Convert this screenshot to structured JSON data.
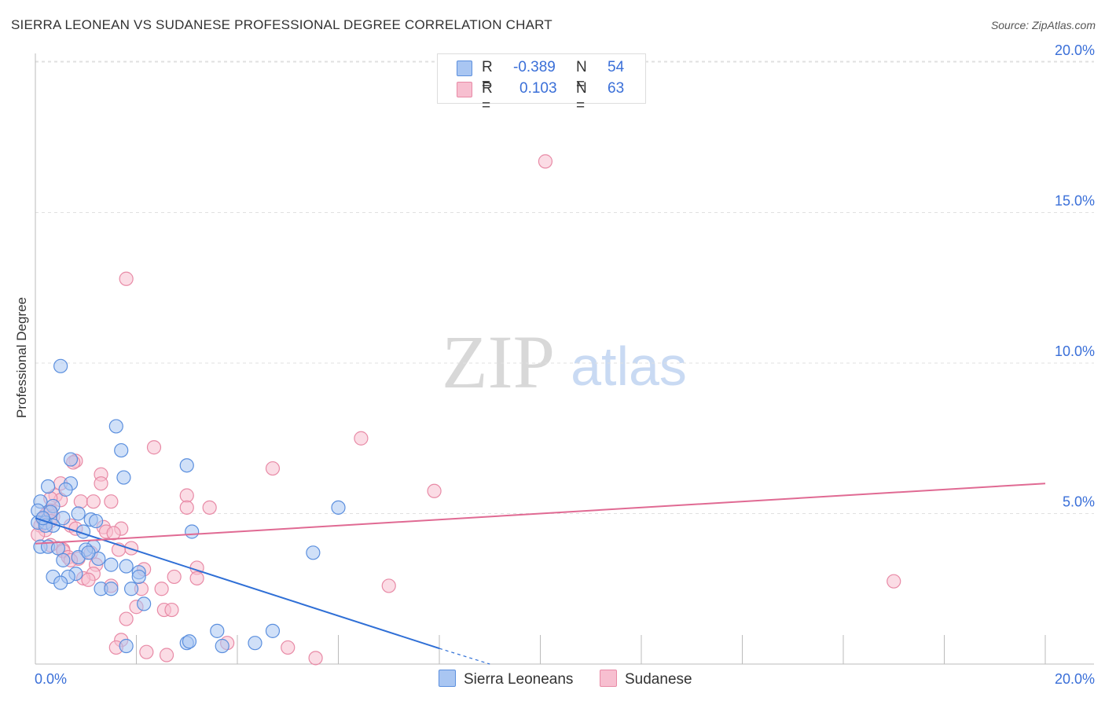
{
  "title": "SIERRA LEONEAN VS SUDANESE PROFESSIONAL DEGREE CORRELATION CHART",
  "source": "Source: ZipAtlas.com",
  "watermark": {
    "zip": "ZIP",
    "atlas": "atlas"
  },
  "colors": {
    "blue_fill": "#a9c6f2",
    "blue_stroke": "#5b8fde",
    "blue_line": "#2f6fd6",
    "pink_fill": "#f7bfd0",
    "pink_stroke": "#e88aa6",
    "pink_line": "#e06a93",
    "tick_text": "#3a6fd8",
    "grid": "#e0e0e0"
  },
  "stats": {
    "blue": {
      "r_label": "R =",
      "r_value": "-0.389",
      "n_label": "N =",
      "n_value": "54"
    },
    "pink": {
      "r_label": "R =",
      "r_value": "0.103",
      "n_label": "N =",
      "n_value": "63"
    }
  },
  "chart_data": {
    "type": "scatter",
    "title": "SIERRA LEONEAN VS SUDANESE PROFESSIONAL DEGREE CORRELATION CHART",
    "xlabel": "",
    "ylabel": "Professional Degree",
    "xlim": [
      0,
      20
    ],
    "ylim": [
      0,
      20
    ],
    "x_tick_labels": [
      "0.0%",
      "20.0%"
    ],
    "y_ticks": [
      5,
      10,
      15,
      20
    ],
    "y_tick_labels": [
      "5.0%",
      "10.0%",
      "15.0%",
      "20.0%"
    ],
    "legend": [
      "Sierra Leoneans",
      "Sudanese"
    ],
    "series": [
      {
        "name": "Sierra Leoneans",
        "color": "blue",
        "trend": {
          "x": [
            0,
            8.0
          ],
          "y": [
            4.85,
            0.52
          ],
          "dashed_to": [
            9.0,
            0.0
          ]
        },
        "points": [
          [
            0.5,
            9.9
          ],
          [
            1.6,
            7.9
          ],
          [
            1.7,
            7.1
          ],
          [
            1.75,
            6.2
          ],
          [
            0.7,
            6.8
          ],
          [
            0.7,
            6.0
          ],
          [
            0.25,
            5.9
          ],
          [
            0.6,
            5.8
          ],
          [
            0.1,
            5.4
          ],
          [
            0.35,
            5.25
          ],
          [
            0.05,
            5.1
          ],
          [
            0.3,
            5.05
          ],
          [
            0.85,
            5.0
          ],
          [
            0.55,
            4.85
          ],
          [
            0.05,
            4.7
          ],
          [
            0.2,
            4.7
          ],
          [
            0.35,
            4.6
          ],
          [
            1.1,
            4.8
          ],
          [
            1.2,
            4.75
          ],
          [
            0.95,
            4.4
          ],
          [
            0.1,
            3.9
          ],
          [
            0.25,
            3.9
          ],
          [
            0.45,
            3.85
          ],
          [
            1.15,
            3.9
          ],
          [
            1.0,
            3.8
          ],
          [
            0.55,
            3.45
          ],
          [
            0.85,
            3.55
          ],
          [
            1.25,
            3.5
          ],
          [
            1.05,
            3.7
          ],
          [
            1.8,
            3.25
          ],
          [
            2.05,
            3.05
          ],
          [
            0.8,
            3.0
          ],
          [
            0.65,
            2.9
          ],
          [
            0.35,
            2.9
          ],
          [
            0.5,
            2.7
          ],
          [
            1.5,
            3.3
          ],
          [
            2.05,
            2.9
          ],
          [
            1.3,
            2.5
          ],
          [
            1.5,
            2.5
          ],
          [
            1.9,
            2.5
          ],
          [
            2.15,
            2.0
          ],
          [
            3.0,
            6.6
          ],
          [
            3.1,
            4.4
          ],
          [
            6.0,
            5.2
          ],
          [
            5.5,
            3.7
          ],
          [
            3.6,
            1.1
          ],
          [
            4.7,
            1.1
          ],
          [
            3.0,
            0.7
          ],
          [
            3.05,
            0.75
          ],
          [
            3.7,
            0.6
          ],
          [
            4.35,
            0.7
          ],
          [
            1.8,
            0.6
          ],
          [
            0.2,
            4.6
          ],
          [
            0.15,
            4.85
          ]
        ]
      },
      {
        "name": "Sudanese",
        "color": "pink",
        "trend": {
          "x": [
            0,
            20
          ],
          "y": [
            4.0,
            6.0
          ]
        },
        "points": [
          [
            10.1,
            16.7
          ],
          [
            1.8,
            12.8
          ],
          [
            6.45,
            7.5
          ],
          [
            2.35,
            7.2
          ],
          [
            4.7,
            6.5
          ],
          [
            0.8,
            6.75
          ],
          [
            0.75,
            6.7
          ],
          [
            1.3,
            6.3
          ],
          [
            1.3,
            6.0
          ],
          [
            0.5,
            6.0
          ],
          [
            7.9,
            5.75
          ],
          [
            3.0,
            5.6
          ],
          [
            0.4,
            5.6
          ],
          [
            0.5,
            5.45
          ],
          [
            0.3,
            5.5
          ],
          [
            0.9,
            5.4
          ],
          [
            1.15,
            5.4
          ],
          [
            1.5,
            5.4
          ],
          [
            3.45,
            5.2
          ],
          [
            3.0,
            5.2
          ],
          [
            0.3,
            5.1
          ],
          [
            0.25,
            5.05
          ],
          [
            0.2,
            4.95
          ],
          [
            0.35,
            4.9
          ],
          [
            0.15,
            4.8
          ],
          [
            0.3,
            4.75
          ],
          [
            0.1,
            4.6
          ],
          [
            0.7,
            4.6
          ],
          [
            0.8,
            4.5
          ],
          [
            1.7,
            4.5
          ],
          [
            1.35,
            4.55
          ],
          [
            0.2,
            4.45
          ],
          [
            1.4,
            4.4
          ],
          [
            1.55,
            4.35
          ],
          [
            0.05,
            4.3
          ],
          [
            0.3,
            3.95
          ],
          [
            0.55,
            3.8
          ],
          [
            1.9,
            3.85
          ],
          [
            0.55,
            3.75
          ],
          [
            1.65,
            3.8
          ],
          [
            1.1,
            3.7
          ],
          [
            0.65,
            3.55
          ],
          [
            0.85,
            3.5
          ],
          [
            0.7,
            3.45
          ],
          [
            1.2,
            3.3
          ],
          [
            3.2,
            3.2
          ],
          [
            2.15,
            3.15
          ],
          [
            1.15,
            3.0
          ],
          [
            0.95,
            2.85
          ],
          [
            1.05,
            2.8
          ],
          [
            2.75,
            2.9
          ],
          [
            3.2,
            2.85
          ],
          [
            1.5,
            2.6
          ],
          [
            2.1,
            2.5
          ],
          [
            2.5,
            2.5
          ],
          [
            7.0,
            2.6
          ],
          [
            17.0,
            2.75
          ],
          [
            2.0,
            1.9
          ],
          [
            2.55,
            1.8
          ],
          [
            2.7,
            1.8
          ],
          [
            1.8,
            1.5
          ],
          [
            1.7,
            0.8
          ],
          [
            5.0,
            0.55
          ]
        ]
      }
    ]
  },
  "extra_pink_low": [
    [
      2.2,
      0.4
    ],
    [
      2.6,
      0.3
    ],
    [
      5.55,
      0.2
    ],
    [
      1.6,
      0.55
    ],
    [
      3.8,
      0.7
    ]
  ]
}
